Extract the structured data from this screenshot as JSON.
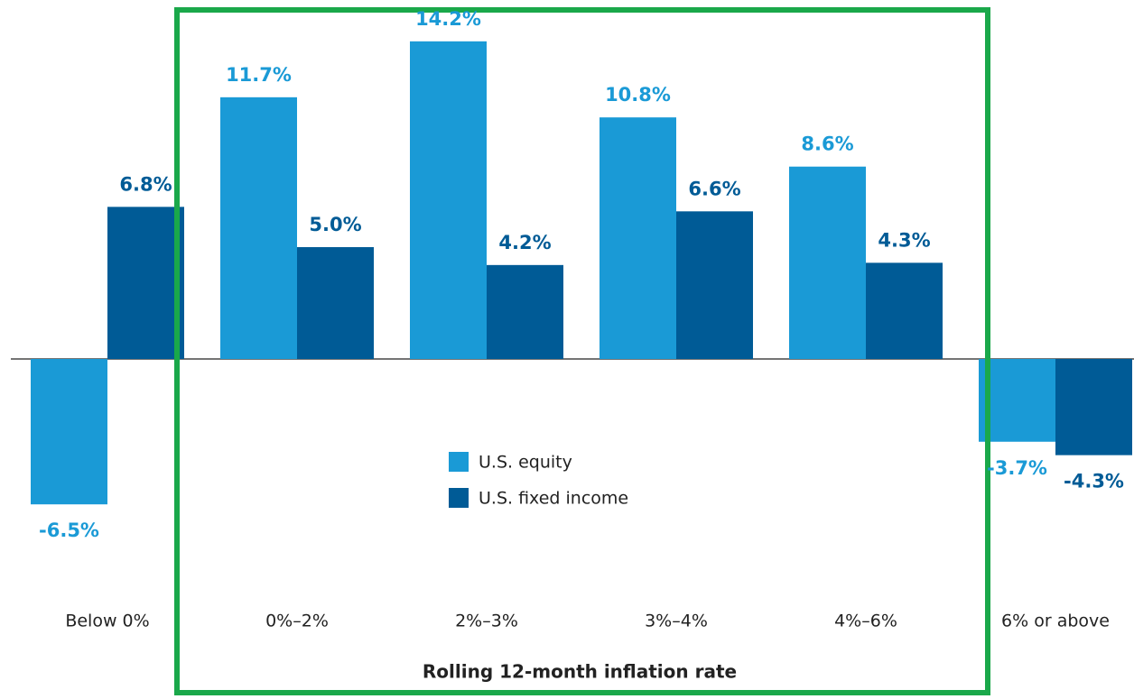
{
  "chart_data": {
    "type": "bar",
    "x_label": "Rolling 12-month inflation rate",
    "categories": [
      "Below 0%",
      "0%–2%",
      "2%–3%",
      "3%–4%",
      "4%–6%",
      "6% or above"
    ],
    "series": [
      {
        "name": "U.S. equity",
        "color": "#1a9ad6",
        "values": [
          -6.5,
          11.7,
          14.2,
          10.8,
          8.6,
          -3.7
        ],
        "value_labels": [
          "-6.5%",
          "11.7%",
          "14.2%",
          "10.8%",
          "8.6%",
          "-3.7%"
        ]
      },
      {
        "name": "U.S. fixed income",
        "color": "#005b96",
        "values": [
          6.8,
          5.0,
          4.2,
          6.6,
          4.3,
          -4.3
        ],
        "value_labels": [
          "6.8%",
          "5.0%",
          "4.2%",
          "6.6%",
          "4.3%",
          "-4.3%"
        ]
      }
    ]
  }
}
